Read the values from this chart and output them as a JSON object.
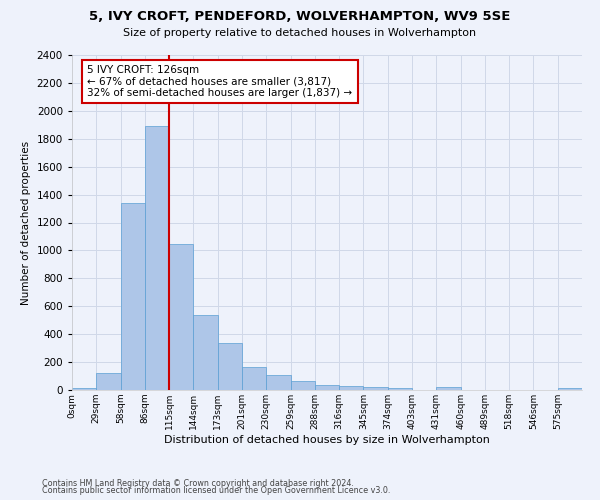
{
  "title": "5, IVY CROFT, PENDEFORD, WOLVERHAMPTON, WV9 5SE",
  "subtitle": "Size of property relative to detached houses in Wolverhampton",
  "xlabel": "Distribution of detached houses by size in Wolverhampton",
  "ylabel": "Number of detached properties",
  "footnote1": "Contains HM Land Registry data © Crown copyright and database right 2024.",
  "footnote2": "Contains public sector information licensed under the Open Government Licence v3.0.",
  "bin_labels": [
    "0sqm",
    "29sqm",
    "58sqm",
    "86sqm",
    "115sqm",
    "144sqm",
    "173sqm",
    "201sqm",
    "230sqm",
    "259sqm",
    "288sqm",
    "316sqm",
    "345sqm",
    "374sqm",
    "403sqm",
    "431sqm",
    "460sqm",
    "489sqm",
    "518sqm",
    "546sqm",
    "575sqm"
  ],
  "bar_values": [
    15,
    125,
    1340,
    1890,
    1045,
    540,
    335,
    165,
    110,
    62,
    38,
    30,
    25,
    15,
    0,
    20,
    0,
    0,
    0,
    0,
    15
  ],
  "bar_color": "#aec6e8",
  "bar_edge_color": "#5a9fd4",
  "vline_color": "#cc0000",
  "annotation_text": "5 IVY CROFT: 126sqm\n← 67% of detached houses are smaller (3,817)\n32% of semi-detached houses are larger (1,837) →",
  "annotation_box_color": "#ffffff",
  "annotation_box_edge_color": "#cc0000",
  "ylim": [
    0,
    2400
  ],
  "yticks": [
    0,
    200,
    400,
    600,
    800,
    1000,
    1200,
    1400,
    1600,
    1800,
    2000,
    2200,
    2400
  ],
  "grid_color": "#d0d8e8",
  "background_color": "#eef2fb",
  "vline_x_index": 4
}
